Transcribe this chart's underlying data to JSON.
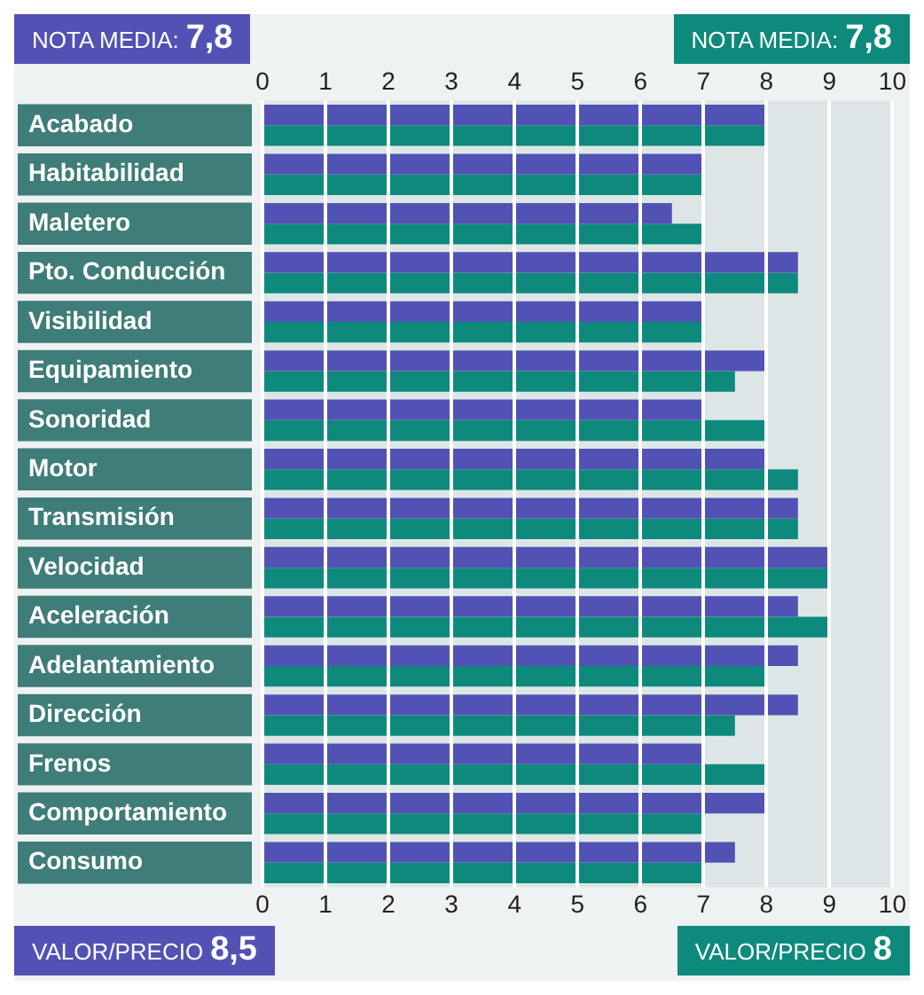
{
  "chart_data": {
    "type": "bar",
    "orientation": "horizontal",
    "categories": [
      "Acabado",
      "Habitabilidad",
      "Maletero",
      "Pto. Conducción",
      "Visibilidad",
      "Equipamiento",
      "Sonoridad",
      "Motor",
      "Transmisión",
      "Velocidad",
      "Aceleración",
      "Adelantamiento",
      "Dirección",
      "Frenos",
      "Comportamiento",
      "Consumo"
    ],
    "series": [
      {
        "color": "#5252b4",
        "values": [
          8,
          7,
          6.5,
          8.5,
          7,
          8,
          7,
          8,
          8.5,
          9,
          8.5,
          8.5,
          8.5,
          7,
          8,
          7.5
        ]
      },
      {
        "color": "#0e8a7c",
        "values": [
          8,
          7,
          7,
          8.5,
          7,
          7.5,
          8,
          8.5,
          8.5,
          9,
          9,
          8,
          7.5,
          8,
          7,
          7
        ]
      }
    ],
    "xlim": [
      0,
      10
    ],
    "xticks": [
      0,
      1,
      2,
      3,
      4,
      5,
      6,
      7,
      8,
      9,
      10
    ],
    "x2lim": [
      0,
      10
    ],
    "x2ticks": [
      0,
      1,
      2,
      3,
      4,
      5,
      6,
      7,
      8,
      9,
      10
    ],
    "grid": "x",
    "legend": false,
    "annotations": [
      "NOTA MEDIA: 7,8",
      "NOTA MEDIA: 7,8",
      "VALOR/PRECIO 8,5",
      "VALOR/PRECIO 8"
    ]
  }
}
